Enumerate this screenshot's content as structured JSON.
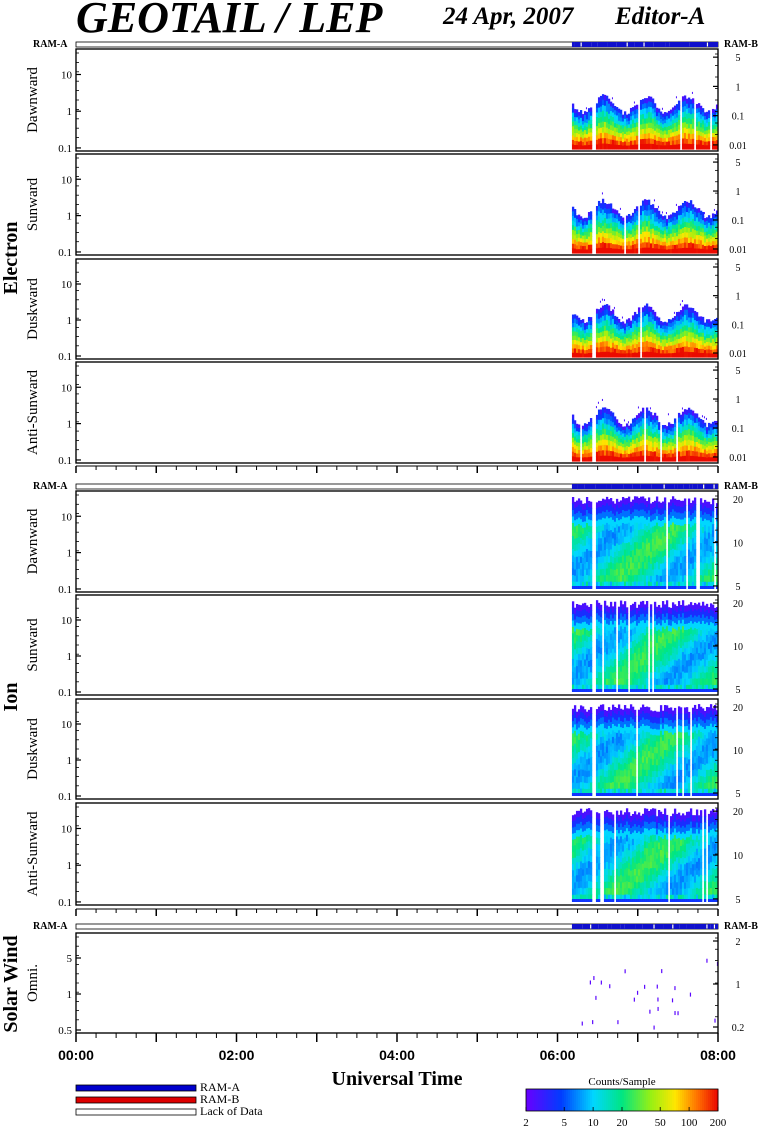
{
  "header": {
    "title": "GEOTAIL / LEP",
    "date": "24 Apr, 2007",
    "editor": "Editor-A"
  },
  "chart_data": {
    "type": "heatmap",
    "xlabel": "Universal Time",
    "x_ticks": [
      "00:00",
      "02:00",
      "04:00",
      "06:00",
      "08:00"
    ],
    "x_range_hours": [
      0,
      8
    ],
    "data_coverage_hours": [
      6.18,
      8.0
    ],
    "data_gap_hours": [
      [
        6.42,
        6.47
      ]
    ],
    "groups": [
      {
        "label": "Electron",
        "panels": [
          {
            "name": "Dawnward",
            "left_ticks": [
              "10",
              "1",
              "0.1"
            ],
            "right_ticks": [
              "5",
              "1",
              "0.1",
              "0.01"
            ]
          },
          {
            "name": "Sunward",
            "left_ticks": [
              "10",
              "1",
              "0.1"
            ],
            "right_ticks": [
              "5",
              "1",
              "0.1",
              "0.01"
            ]
          },
          {
            "name": "Duskward",
            "left_ticks": [
              "10",
              "1",
              "0.1"
            ],
            "right_ticks": [
              "5",
              "1",
              "0.1",
              "0.01"
            ]
          },
          {
            "name": "Anti-Sunward",
            "left_ticks": [
              "10",
              "1",
              "0.1"
            ],
            "right_ticks": [
              "5",
              "1",
              "0.1",
              "0.01"
            ]
          }
        ]
      },
      {
        "label": "Ion",
        "panels": [
          {
            "name": "Dawnward",
            "left_ticks": [
              "10",
              "1",
              "0.1"
            ],
            "right_ticks": [
              "20",
              "10",
              "5"
            ]
          },
          {
            "name": "Sunward",
            "left_ticks": [
              "10",
              "1",
              "0.1"
            ],
            "right_ticks": [
              "20",
              "10",
              "5"
            ]
          },
          {
            "name": "Duskward",
            "left_ticks": [
              "10",
              "1",
              "0.1"
            ],
            "right_ticks": [
              "20",
              "10",
              "5"
            ]
          },
          {
            "name": "Anti-Sunward",
            "left_ticks": [
              "10",
              "1",
              "0.1"
            ],
            "right_ticks": [
              "20",
              "10",
              "5"
            ]
          }
        ]
      },
      {
        "label": "Solar Wind",
        "panels": [
          {
            "name": "Omni.",
            "left_ticks": [
              "5",
              "1",
              "0.5"
            ],
            "right_ticks": [
              "2",
              "1",
              "0.2"
            ]
          }
        ]
      }
    ],
    "ram_labels": {
      "a": "RAM-A",
      "b": "RAM-B"
    },
    "legend": [
      {
        "label": "RAM-A",
        "color": "#0000cc"
      },
      {
        "label": "RAM-B",
        "color": "#dd0000"
      },
      {
        "label": "Lack of Data",
        "color": "#ffffff"
      }
    ],
    "colorbar": {
      "title": "Counts/Sample",
      "ticks": [
        "2",
        "5",
        "10",
        "20",
        "50",
        "100",
        "200"
      ],
      "range": [
        2,
        200
      ],
      "scale": "log"
    }
  }
}
